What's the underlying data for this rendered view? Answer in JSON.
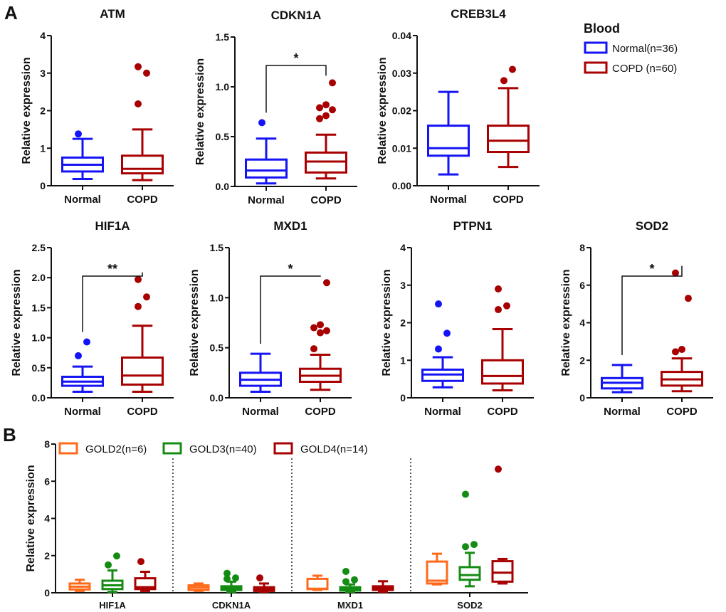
{
  "colors": {
    "normal": "#1414f5",
    "copd": "#a80000",
    "gold2": "#ff6a1a",
    "gold3": "#148c14",
    "gold4": "#a80000"
  },
  "panel_labels": {
    "a": "A",
    "b": "B"
  },
  "legend_a": {
    "title": "Blood",
    "items": [
      {
        "label": "Normal(n=36)",
        "color_key": "normal"
      },
      {
        "label": "COPD (n=60)",
        "color_key": "copd"
      }
    ]
  },
  "legend_b": {
    "items": [
      {
        "label": "GOLD2(n=6)",
        "color_key": "gold2"
      },
      {
        "label": "GOLD3(n=40)",
        "color_key": "gold3"
      },
      {
        "label": "GOLD4(n=14)",
        "color_key": "gold4"
      }
    ]
  },
  "chart_data": [
    {
      "type": "box",
      "title": "ATM",
      "ylabel": "Relative expression",
      "ylim": [
        0,
        4
      ],
      "yticks": [
        "0",
        "1",
        "2",
        "3",
        "4"
      ],
      "categories": [
        "Normal",
        "COPD"
      ],
      "significance": "",
      "boxes": [
        {
          "min": 0.18,
          "q1": 0.38,
          "median": 0.56,
          "q3": 0.75,
          "max": 1.25,
          "outliers": [
            1.38
          ]
        },
        {
          "min": 0.15,
          "q1": 0.33,
          "median": 0.45,
          "q3": 0.8,
          "max": 1.5,
          "outliers": [
            2.18,
            3.0,
            3.17
          ]
        }
      ]
    },
    {
      "type": "box",
      "title": "CDKN1A",
      "ylabel": "Relative expression",
      "ylim": [
        0,
        1.5
      ],
      "yticks": [
        "0.0",
        "0.5",
        "1.0",
        "1.5"
      ],
      "categories": [
        "Normal",
        "COPD"
      ],
      "significance": "*",
      "boxes": [
        {
          "min": 0.03,
          "q1": 0.09,
          "median": 0.16,
          "q3": 0.27,
          "max": 0.48,
          "outliers": [
            0.64
          ]
        },
        {
          "min": 0.08,
          "q1": 0.14,
          "median": 0.25,
          "q3": 0.34,
          "max": 0.52,
          "outliers": [
            0.68,
            0.71,
            0.77,
            0.79,
            0.82,
            1.04
          ]
        }
      ]
    },
    {
      "type": "box",
      "title": "CREB3L4",
      "ylabel": "Relative expression",
      "ylim": [
        0,
        0.04
      ],
      "yticks": [
        "0.00",
        "0.01",
        "0.02",
        "0.03",
        "0.04"
      ],
      "categories": [
        "Normal",
        "COPD"
      ],
      "significance": "",
      "boxes": [
        {
          "min": 0.003,
          "q1": 0.008,
          "median": 0.01,
          "q3": 0.016,
          "max": 0.025,
          "outliers": []
        },
        {
          "min": 0.005,
          "q1": 0.009,
          "median": 0.012,
          "q3": 0.016,
          "max": 0.026,
          "outliers": [
            0.028,
            0.031
          ]
        }
      ]
    },
    {
      "type": "box",
      "title": "HIF1A",
      "ylabel": "Relative expression",
      "ylim": [
        0,
        2.5
      ],
      "yticks": [
        "0.0",
        "0.5",
        "1.0",
        "1.5",
        "2.0",
        "2.5"
      ],
      "categories": [
        "Normal",
        "COPD"
      ],
      "significance": "**",
      "boxes": [
        {
          "min": 0.1,
          "q1": 0.2,
          "median": 0.27,
          "q3": 0.35,
          "max": 0.52,
          "outliers": [
            0.7,
            0.93
          ]
        },
        {
          "min": 0.1,
          "q1": 0.22,
          "median": 0.37,
          "q3": 0.67,
          "max": 1.2,
          "outliers": [
            1.52,
            1.68,
            1.97
          ]
        }
      ]
    },
    {
      "type": "box",
      "title": "MXD1",
      "ylabel": "Relative expression",
      "ylim": [
        0,
        1.5
      ],
      "yticks": [
        "0.0",
        "0.5",
        "1.0",
        "1.5"
      ],
      "categories": [
        "Normal",
        "COPD"
      ],
      "significance": "*",
      "boxes": [
        {
          "min": 0.06,
          "q1": 0.12,
          "median": 0.18,
          "q3": 0.25,
          "max": 0.44,
          "outliers": []
        },
        {
          "min": 0.08,
          "q1": 0.16,
          "median": 0.22,
          "q3": 0.29,
          "max": 0.43,
          "outliers": [
            0.49,
            0.65,
            0.67,
            0.7,
            0.73,
            1.15
          ]
        }
      ]
    },
    {
      "type": "box",
      "title": "PTPN1",
      "ylabel": "Relative expression",
      "ylim": [
        0,
        4
      ],
      "yticks": [
        "0",
        "1",
        "2",
        "3",
        "4"
      ],
      "categories": [
        "Normal",
        "COPD"
      ],
      "significance": "",
      "boxes": [
        {
          "min": 0.28,
          "q1": 0.45,
          "median": 0.62,
          "q3": 0.75,
          "max": 1.08,
          "outliers": [
            1.3,
            1.72,
            2.5
          ]
        },
        {
          "min": 0.2,
          "q1": 0.38,
          "median": 0.58,
          "q3": 1.0,
          "max": 1.83,
          "outliers": [
            2.35,
            2.45,
            2.9
          ]
        }
      ]
    },
    {
      "type": "box",
      "title": "SOD2",
      "ylabel": "Relative expression",
      "ylim": [
        0,
        8
      ],
      "yticks": [
        "0",
        "2",
        "4",
        "6",
        "8"
      ],
      "categories": [
        "Normal",
        "COPD"
      ],
      "significance": "*",
      "boxes": [
        {
          "min": 0.3,
          "q1": 0.5,
          "median": 0.8,
          "q3": 1.05,
          "max": 1.75,
          "outliers": []
        },
        {
          "min": 0.35,
          "q1": 0.65,
          "median": 0.98,
          "q3": 1.38,
          "max": 2.1,
          "outliers": [
            2.45,
            2.58,
            5.3,
            6.65
          ]
        }
      ]
    },
    {
      "type": "box",
      "title": "",
      "ylabel": "Relative expression",
      "ylim": [
        0,
        8
      ],
      "yticks": [
        "0",
        "2",
        "4",
        "6",
        "8"
      ],
      "categories": [
        "HIF1A",
        "CDKN1A",
        "MXD1",
        "SOD2"
      ],
      "series": [
        {
          "name": "GOLD2(n=6)",
          "color_key": "gold2",
          "boxes": [
            {
              "min": 0.1,
              "q1": 0.18,
              "median": 0.33,
              "q3": 0.5,
              "max": 0.7,
              "outliers": []
            },
            {
              "min": 0.1,
              "q1": 0.15,
              "median": 0.28,
              "q3": 0.4,
              "max": 0.5,
              "outliers": []
            },
            {
              "min": 0.15,
              "q1": 0.2,
              "median": 0.22,
              "q3": 0.75,
              "max": 0.92,
              "outliers": []
            },
            {
              "min": 0.45,
              "q1": 0.5,
              "median": 0.65,
              "q3": 1.68,
              "max": 2.1,
              "outliers": []
            }
          ]
        },
        {
          "name": "GOLD3(n=40)",
          "color_key": "gold3",
          "boxes": [
            {
              "min": 0.05,
              "q1": 0.2,
              "median": 0.4,
              "q3": 0.65,
              "max": 1.2,
              "outliers": [
                1.5,
                1.98
              ]
            },
            {
              "min": 0.05,
              "q1": 0.15,
              "median": 0.25,
              "q3": 0.35,
              "max": 0.6,
              "outliers": [
                0.75,
                0.8,
                1.05
              ]
            },
            {
              "min": 0.05,
              "q1": 0.12,
              "median": 0.2,
              "q3": 0.3,
              "max": 0.45,
              "outliers": [
                0.6,
                0.7,
                1.15
              ]
            },
            {
              "min": 0.35,
              "q1": 0.7,
              "median": 0.95,
              "q3": 1.38,
              "max": 2.15,
              "outliers": [
                2.48,
                2.6,
                5.3
              ]
            }
          ]
        },
        {
          "name": "GOLD4(n=14)",
          "color_key": "gold4",
          "boxes": [
            {
              "min": 0.1,
              "q1": 0.2,
              "median": 0.3,
              "q3": 0.78,
              "max": 1.13,
              "outliers": [
                1.68
              ]
            },
            {
              "min": 0.05,
              "q1": 0.1,
              "median": 0.2,
              "q3": 0.3,
              "max": 0.5,
              "outliers": [
                0.8
              ]
            },
            {
              "min": 0.05,
              "q1": 0.15,
              "median": 0.25,
              "q3": 0.35,
              "max": 0.62,
              "outliers": []
            },
            {
              "min": 0.5,
              "q1": 0.6,
              "median": 1.08,
              "q3": 1.7,
              "max": 1.82,
              "outliers": [
                6.65
              ]
            }
          ]
        }
      ]
    }
  ]
}
